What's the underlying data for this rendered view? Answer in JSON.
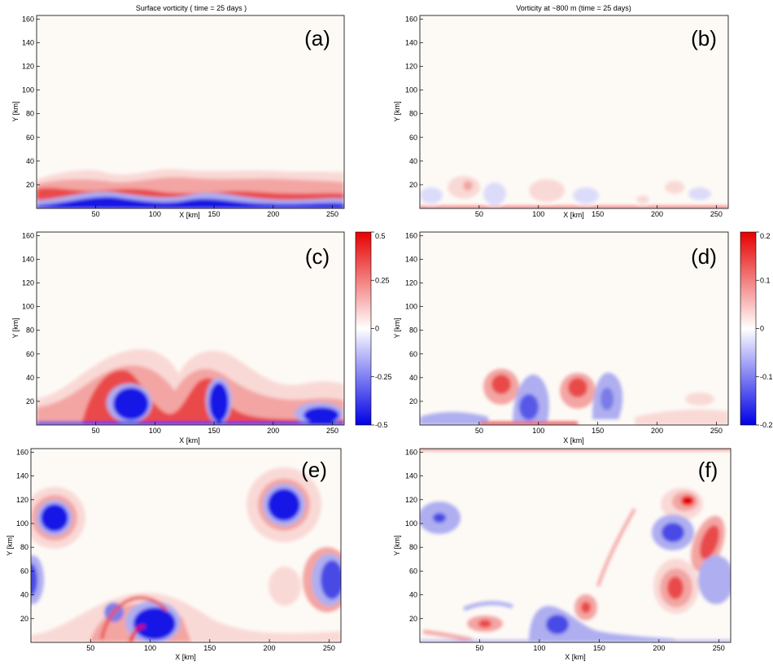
{
  "colors": {
    "background": "#fdfaf6",
    "axis": "#000000",
    "pos_light": "#f9d9d6",
    "pos_mid": "#f3a5a3",
    "pos_strong": "#ea4a49",
    "pos_max": "#e60000",
    "neg_light": "#dcdcfa",
    "neg_mid": "#aeaef0",
    "neg_strong": "#4a4ae6",
    "neg_max": "#1515e6"
  },
  "chart_data": [
    {
      "type": "heatmap",
      "panel": "(a)",
      "title": "Surface vorticity ( time = 25 days )",
      "xlabel": "X [km]",
      "ylabel": "Y [km]",
      "xlim": [
        0,
        260
      ],
      "ylim": [
        0,
        163
      ],
      "xticks": [
        50,
        100,
        150,
        200,
        250
      ],
      "yticks": [
        20,
        40,
        60,
        80,
        100,
        120,
        140,
        160
      ],
      "features": [
        {
          "kind": "band",
          "sign": "positive",
          "y_center": 18,
          "thickness": 12
        },
        {
          "kind": "band",
          "sign": "negative",
          "y_center": 6,
          "thickness": 6
        }
      ]
    },
    {
      "type": "heatmap",
      "panel": "(b)",
      "title": "Vorticity at ~800 m (time = 25 days)",
      "xlabel": "X [km]",
      "ylabel": "Y [km]",
      "xlim": [
        0,
        260
      ],
      "ylim": [
        0,
        163
      ],
      "xticks": [
        50,
        100,
        150,
        200,
        250
      ],
      "yticks": [
        20,
        40,
        60,
        80,
        100,
        120,
        140,
        160
      ],
      "features": [
        {
          "kind": "eddy",
          "sign": "positive",
          "x": 40,
          "y": 20,
          "strength": 0.1
        },
        {
          "kind": "eddy",
          "sign": "negative",
          "x": 65,
          "y": 15,
          "strength": 0.08
        },
        {
          "kind": "eddy",
          "sign": "positive",
          "x": 115,
          "y": 20,
          "strength": 0.1
        },
        {
          "kind": "eddy",
          "sign": "negative",
          "x": 140,
          "y": 15,
          "strength": 0.06
        }
      ]
    },
    {
      "type": "heatmap",
      "panel": "(c)",
      "title": "",
      "xlabel": "X [km]",
      "ylabel": "Y [km]",
      "xlim": [
        0,
        260
      ],
      "ylim": [
        0,
        163
      ],
      "xticks": [
        50,
        100,
        150,
        200,
        250
      ],
      "yticks": [
        20,
        40,
        60,
        80,
        100,
        120,
        140,
        160
      ],
      "colorbar": {
        "min": -0.5,
        "max": 0.5,
        "ticks": [
          0.5,
          0.25,
          0,
          -0.25,
          -0.5
        ],
        "tick_labels": [
          "0.5",
          "0.25",
          "0",
          "-0.25",
          "-0.5"
        ]
      },
      "features": [
        {
          "kind": "eddy",
          "sign": "negative",
          "x": 85,
          "y": 20,
          "strength": 0.5
        },
        {
          "kind": "eddy",
          "sign": "negative",
          "x": 155,
          "y": 20,
          "strength": 0.5
        },
        {
          "kind": "eddy",
          "sign": "negative",
          "x": 235,
          "y": 12,
          "strength": 0.5
        },
        {
          "kind": "band",
          "sign": "positive",
          "y_center": 10,
          "thickness": 6
        }
      ]
    },
    {
      "type": "heatmap",
      "panel": "(d)",
      "title": "",
      "xlabel": "X [km]",
      "ylabel": "Y [km]",
      "xlim": [
        0,
        260
      ],
      "ylim": [
        0,
        163
      ],
      "xticks": [
        50,
        100,
        150,
        200,
        250
      ],
      "yticks": [
        20,
        40,
        60,
        80,
        100,
        120,
        140,
        160
      ],
      "colorbar": {
        "min": -0.2,
        "max": 0.2,
        "ticks": [
          0.2,
          0.1,
          0,
          -0.1,
          -0.2
        ],
        "tick_labels": [
          "0.2",
          "0.1",
          "0",
          "-0.1",
          "-0.2"
        ]
      },
      "features": [
        {
          "kind": "eddy",
          "sign": "positive",
          "x": 68,
          "y": 35,
          "strength": 0.15
        },
        {
          "kind": "eddy",
          "sign": "negative",
          "x": 85,
          "y": 20,
          "strength": 0.1
        },
        {
          "kind": "eddy",
          "sign": "positive",
          "x": 133,
          "y": 33,
          "strength": 0.15
        },
        {
          "kind": "eddy",
          "sign": "negative",
          "x": 150,
          "y": 20,
          "strength": 0.1
        }
      ]
    },
    {
      "type": "heatmap",
      "panel": "(e)",
      "title": "",
      "xlabel": "X [km]",
      "ylabel": "Y [km]",
      "xlim": [
        0,
        260
      ],
      "ylim": [
        0,
        163
      ],
      "xticks": [
        50,
        100,
        150,
        200,
        250
      ],
      "yticks": [
        20,
        40,
        60,
        80,
        100,
        120,
        140,
        160
      ],
      "features": [
        {
          "kind": "eddy",
          "sign": "negative",
          "x": 20,
          "y": 105,
          "strength": 0.5
        },
        {
          "kind": "eddy",
          "sign": "negative",
          "x": 208,
          "y": 115,
          "strength": 0.5
        },
        {
          "kind": "eddy",
          "sign": "negative",
          "x": 250,
          "y": 55,
          "strength": 0.4
        },
        {
          "kind": "eddy",
          "sign": "negative",
          "x": 112,
          "y": 18,
          "strength": 0.5
        },
        {
          "kind": "eddy",
          "sign": "negative",
          "x": 70,
          "y": 27,
          "strength": 0.3
        }
      ]
    },
    {
      "type": "heatmap",
      "panel": "(f)",
      "title": "",
      "xlabel": "X [km]",
      "ylabel": "Y [km]",
      "xlim": [
        0,
        260
      ],
      "ylim": [
        0,
        163
      ],
      "xticks": [
        50,
        100,
        150,
        200,
        250
      ],
      "yticks": [
        20,
        40,
        60,
        80,
        100,
        120,
        140,
        160
      ],
      "features": [
        {
          "kind": "eddy",
          "sign": "positive",
          "x": 222,
          "y": 137,
          "strength": 0.2
        },
        {
          "kind": "eddy",
          "sign": "positive",
          "x": 245,
          "y": 105,
          "strength": 0.2
        },
        {
          "kind": "eddy",
          "sign": "positive",
          "x": 212,
          "y": 47,
          "strength": 0.2
        },
        {
          "kind": "eddy",
          "sign": "positive",
          "x": 138,
          "y": 32,
          "strength": 0.15
        },
        {
          "kind": "eddy",
          "sign": "positive",
          "x": 55,
          "y": 18,
          "strength": 0.15
        },
        {
          "kind": "eddy",
          "sign": "negative",
          "x": 210,
          "y": 108,
          "strength": 0.1
        },
        {
          "kind": "eddy",
          "sign": "negative",
          "x": 15,
          "y": 105,
          "strength": 0.08
        },
        {
          "kind": "eddy",
          "sign": "negative",
          "x": 120,
          "y": 20,
          "strength": 0.1
        },
        {
          "kind": "eddy",
          "sign": "negative",
          "x": 252,
          "y": 60,
          "strength": 0.08
        }
      ]
    }
  ]
}
